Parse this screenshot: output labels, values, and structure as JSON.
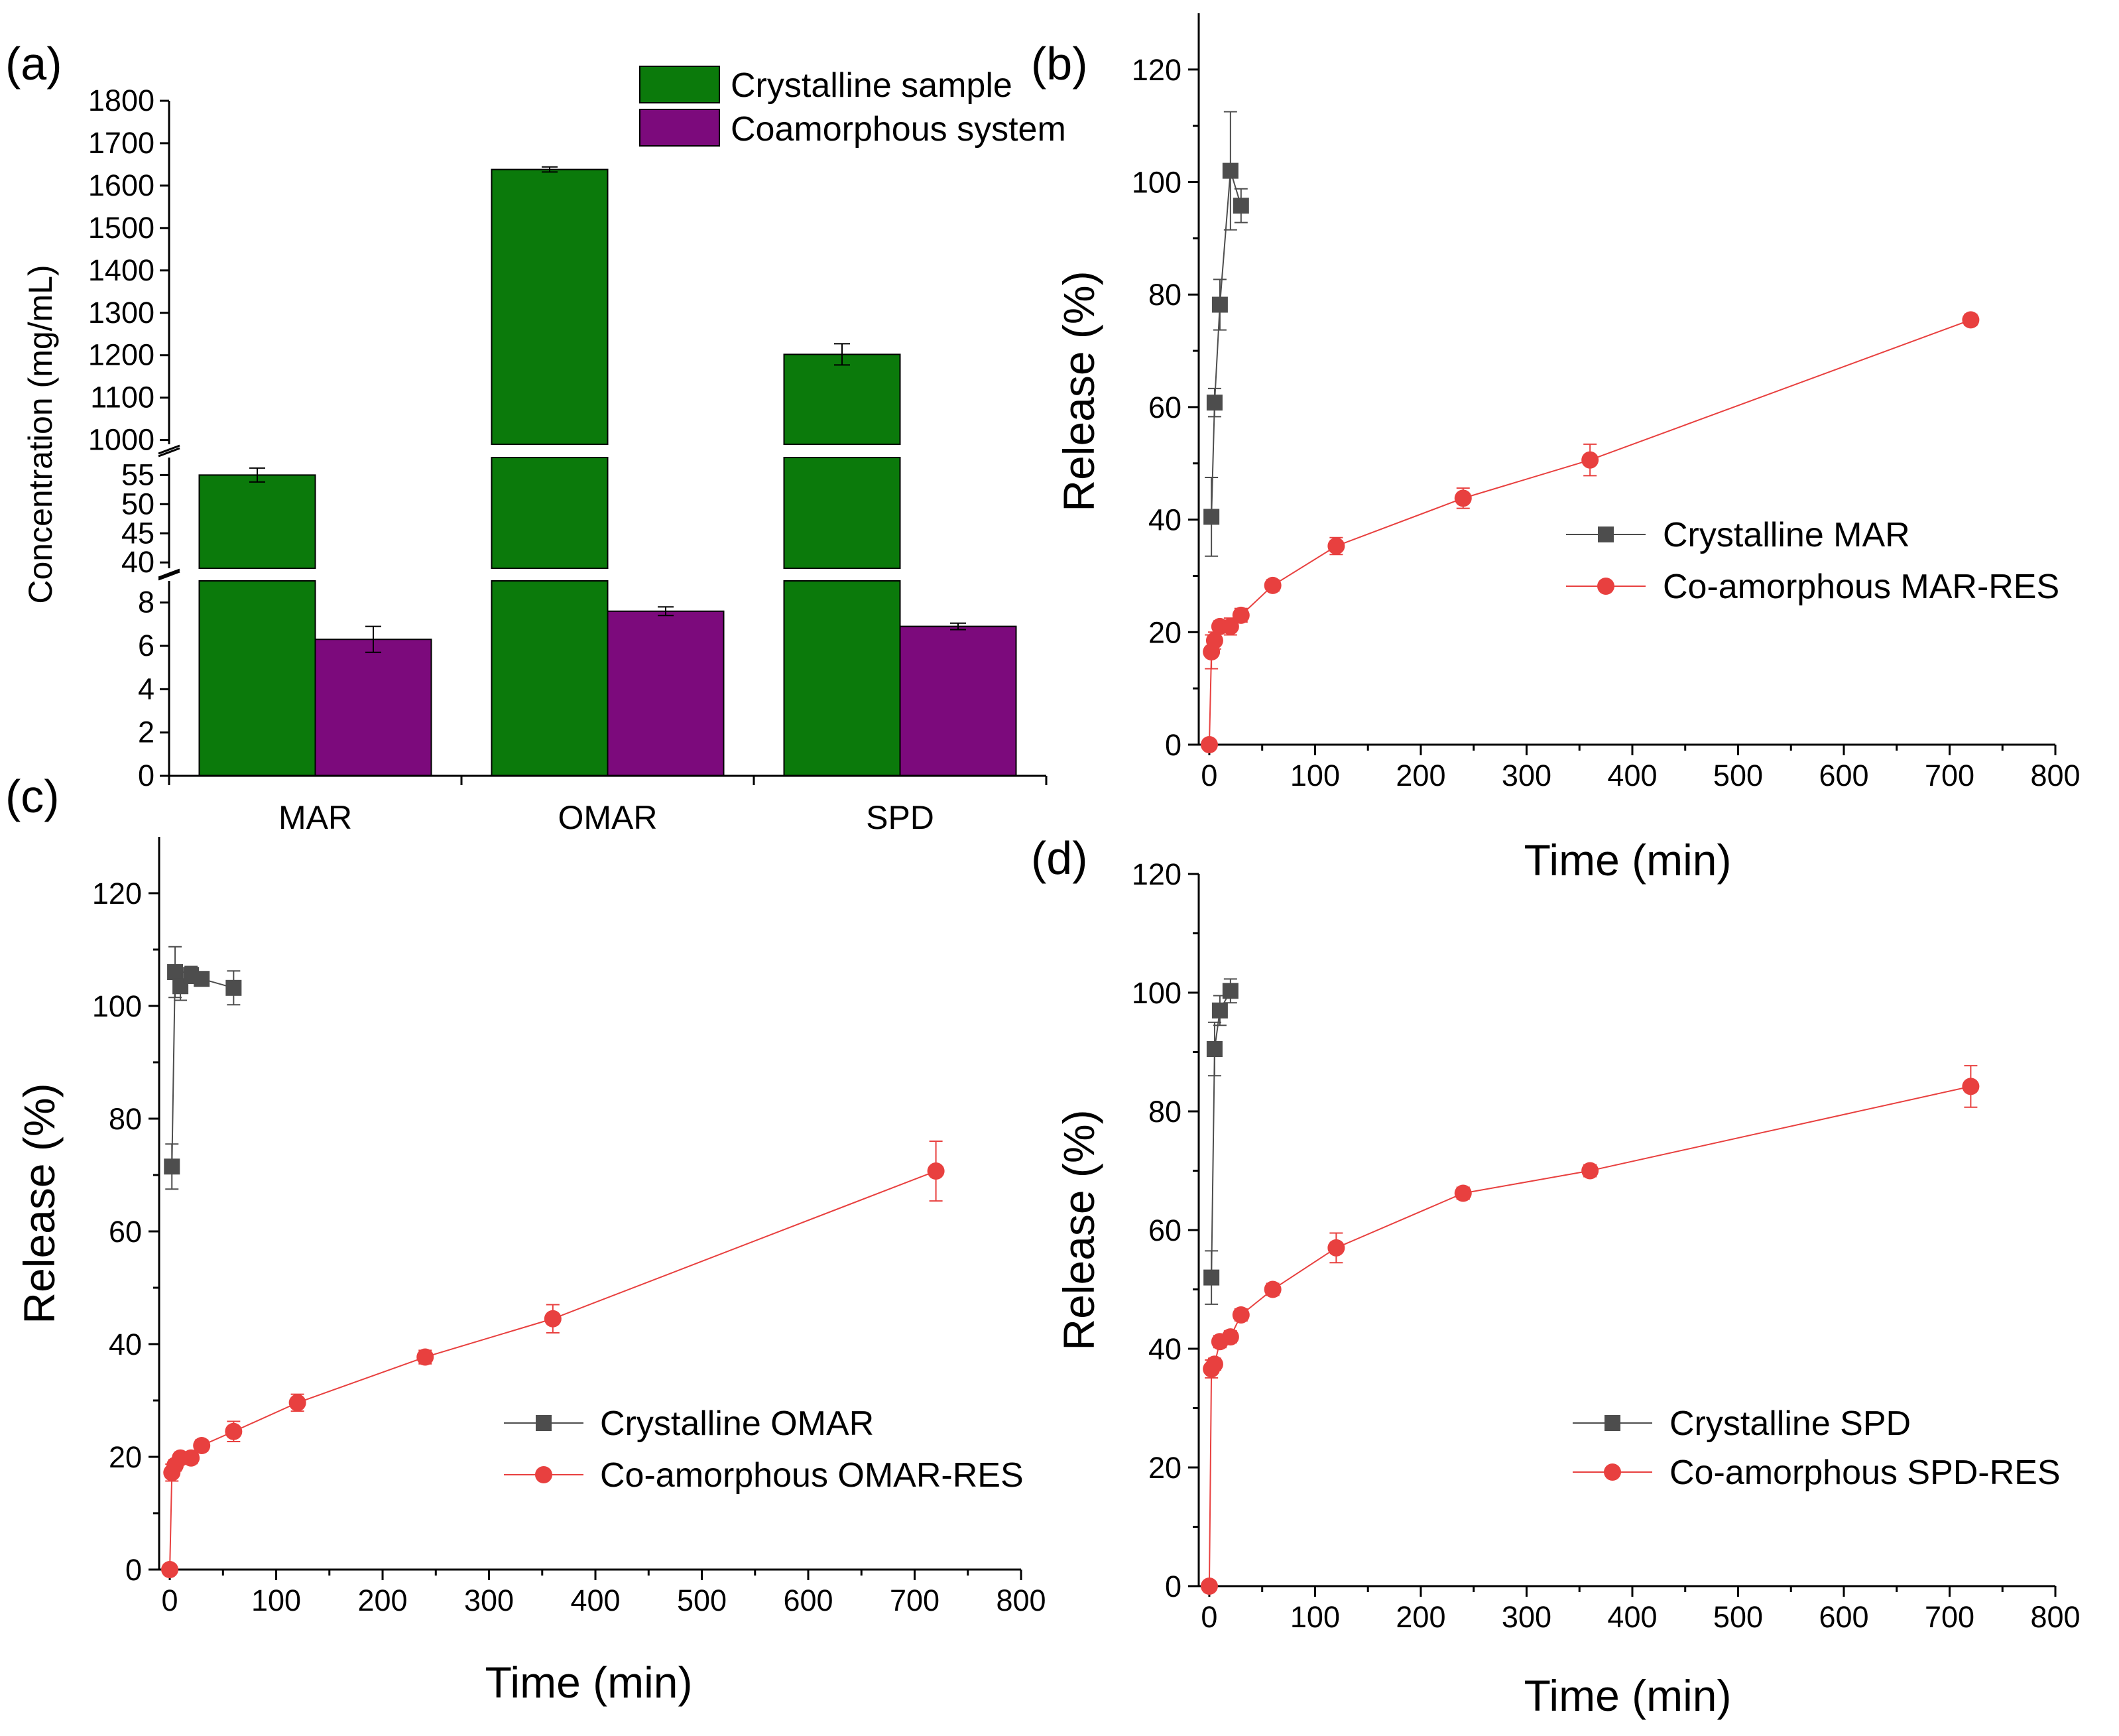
{
  "chart_data": [
    {
      "panel": "(a)",
      "type": "bar",
      "categories": [
        "MAR",
        "OMAR",
        "SPD"
      ],
      "series": [
        {
          "name": "Crystalline sample",
          "color": "#0b7a0b",
          "values": [
            55,
            1638,
            1202
          ],
          "errors": [
            1.2,
            6,
            25
          ]
        },
        {
          "name": "Coamorphous system",
          "color": "#7c0a7c",
          "values": [
            6.3,
            7.6,
            6.9
          ],
          "errors": [
            0.6,
            0.2,
            0.15
          ]
        }
      ],
      "ylabel": "Concentration (mg/mL)",
      "y_breaks": [
        {
          "range": [
            0,
            9
          ],
          "ticks": [
            0,
            2,
            4,
            6,
            8
          ]
        },
        {
          "range": [
            39,
            58
          ],
          "ticks": [
            40,
            45,
            50,
            55
          ]
        },
        {
          "range": [
            990,
            1800
          ],
          "ticks": [
            1000,
            1100,
            1200,
            1300,
            1400,
            1500,
            1600,
            1700,
            1800
          ]
        }
      ]
    },
    {
      "panel": "(b)",
      "type": "line",
      "xlabel": "Time (min)",
      "ylabel": "Release (%)",
      "xlim": [
        -10,
        800
      ],
      "ylim": [
        0,
        130
      ],
      "xticks": [
        0,
        100,
        200,
        300,
        400,
        500,
        600,
        700,
        800
      ],
      "yticks": [
        0,
        20,
        40,
        60,
        80,
        100,
        120
      ],
      "series": [
        {
          "name": "Crystalline MAR",
          "color": "#4d4d4d",
          "marker": "square",
          "x": [
            2,
            5,
            10,
            20,
            30
          ],
          "y": [
            40.5,
            60.8,
            78.2,
            102,
            95.8
          ],
          "err": [
            7,
            2.5,
            4.5,
            10.5,
            3
          ]
        },
        {
          "name": "Co-amorphous MAR-RES",
          "color": "#e8403f",
          "marker": "circle",
          "x": [
            0,
            2,
            5,
            10,
            20,
            30,
            60,
            120,
            240,
            360,
            720
          ],
          "y": [
            0,
            16.5,
            18.5,
            21,
            21,
            23,
            28.3,
            35.3,
            43.8,
            50.6,
            75.5
          ],
          "err": [
            0,
            3,
            1.5,
            1,
            1.5,
            1.2,
            1,
            1.5,
            1.8,
            2.8,
            1
          ]
        }
      ]
    },
    {
      "panel": "(c)",
      "type": "line",
      "xlabel": "Time (min)",
      "ylabel": "Release (%)",
      "xlim": [
        -10,
        800
      ],
      "ylim": [
        0,
        130
      ],
      "xticks": [
        0,
        100,
        200,
        300,
        400,
        500,
        600,
        700,
        800
      ],
      "yticks": [
        0,
        20,
        40,
        60,
        80,
        100,
        120
      ],
      "series": [
        {
          "name": "Crystalline OMAR",
          "color": "#4d4d4d",
          "marker": "square",
          "x": [
            2,
            5,
            10,
            20,
            30,
            60
          ],
          "y": [
            71.5,
            106,
            103.5,
            105.5,
            104.8,
            103.2
          ],
          "err": [
            4,
            4.5,
            2.5,
            1.5,
            1,
            3
          ]
        },
        {
          "name": "Co-amorphous OMAR-RES",
          "color": "#e8403f",
          "marker": "circle",
          "x": [
            0,
            2,
            5,
            10,
            20,
            30,
            60,
            120,
            240,
            360,
            720
          ],
          "y": [
            0,
            17.2,
            18.5,
            19.8,
            19.8,
            22,
            24.5,
            29.6,
            37.7,
            44.5,
            70.7
          ],
          "err": [
            0,
            1.5,
            1,
            1,
            1,
            1,
            1.8,
            1.5,
            1.2,
            2.5,
            5.3
          ]
        }
      ]
    },
    {
      "panel": "(d)",
      "type": "line",
      "xlabel": "Time (min)",
      "ylabel": "Release (%)",
      "xlim": [
        -10,
        800
      ],
      "ylim": [
        0,
        120
      ],
      "xticks": [
        0,
        100,
        200,
        300,
        400,
        500,
        600,
        700,
        800
      ],
      "yticks": [
        0,
        20,
        40,
        60,
        80,
        100,
        120
      ],
      "series": [
        {
          "name": "Crystalline SPD",
          "color": "#4d4d4d",
          "marker": "square",
          "x": [
            2,
            5,
            10,
            20
          ],
          "y": [
            52,
            90.5,
            97,
            100.3
          ],
          "err": [
            4.5,
            4.5,
            2.5,
            2
          ]
        },
        {
          "name": "Co-amorphous SPD-RES",
          "color": "#e8403f",
          "marker": "circle",
          "x": [
            0,
            2,
            5,
            10,
            20,
            30,
            60,
            120,
            240,
            360,
            720
          ],
          "y": [
            0,
            36.6,
            37.4,
            41.2,
            42,
            45.7,
            50,
            57,
            66.2,
            70,
            84.2
          ],
          "err": [
            0,
            1.5,
            1,
            1,
            1,
            1,
            1,
            2.5,
            1,
            1,
            3.5
          ]
        }
      ]
    }
  ]
}
